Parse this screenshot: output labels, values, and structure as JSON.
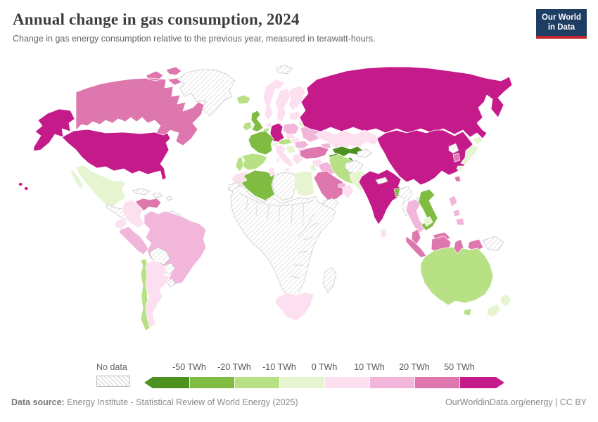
{
  "header": {
    "title": "Annual change in gas consumption, 2024",
    "subtitle": "Change in gas energy consumption relative to the previous year, measured in terawatt-hours.",
    "logo": {
      "line1": "Our World",
      "line2": "in Data",
      "bg": "#1d3d63",
      "accent": "#c1272d"
    }
  },
  "legend": {
    "no_data_label": "No data",
    "tick_labels": [
      "-50 TWh",
      "-20 TWh",
      "-10 TWh",
      "0 TWh",
      "10 TWh",
      "20 TWh",
      "50 TWh"
    ],
    "colors": [
      "#4d9221",
      "#7fbc41",
      "#b8e186",
      "#e6f5d0",
      "#fde0ef",
      "#f1b6da",
      "#de77ae",
      "#c51b8a"
    ]
  },
  "footer": {
    "source_label": "Data source:",
    "source_text": "Energy Institute - Statistical Review of World Energy (2025)",
    "site": "OurWorldinData.org/energy",
    "separator": "|",
    "license": "CC BY"
  },
  "chart_data": {
    "type": "choropleth",
    "title": "Annual change in gas consumption, 2024",
    "unit": "TWh",
    "legend_bin_labels": [
      "< -50 TWh",
      "-50 to -20 TWh",
      "-20 to -10 TWh",
      "-10 to 0 TWh",
      "0 to 10 TWh",
      "10 to 20 TWh",
      "20 to 50 TWh",
      "> 50 TWh"
    ],
    "bin_colors": [
      "#4d9221",
      "#7fbc41",
      "#b8e186",
      "#e6f5d0",
      "#fde0ef",
      "#f1b6da",
      "#de77ae",
      "#c51b8a"
    ],
    "no_data_label": "No data",
    "countries": {
      "united-states": 7,
      "canada": 6,
      "greenland": "no-data",
      "mexico": 3,
      "central-america": "no-data",
      "caribbean": "no-data",
      "guyanas": "no-data",
      "venezuela": 6,
      "colombia": 4,
      "ecuador": 4,
      "peru": 5,
      "brazil": 5,
      "bolivia": "no-data",
      "paraguay": "no-data",
      "uruguay": "no-data",
      "chile": 2,
      "argentina": 4,
      "iceland": 2,
      "united-kingdom": 1,
      "ireland": 2,
      "norway": 4,
      "sweden": 4,
      "finland": 4,
      "denmark": 4,
      "baltics": 4,
      "belarus": 3,
      "poland": 5,
      "germany": 7,
      "netherlands": 4,
      "belgium": 2,
      "france": 1,
      "switzerland": 3,
      "austria": 2,
      "czechia": 4,
      "hungary": 4,
      "romania": 5,
      "balkans": 3,
      "bulgaria": 4,
      "greece": 4,
      "italy": 4,
      "spain": 2,
      "portugal": 2,
      "ukraine": 5,
      "caucasus": 5,
      "russia": 7,
      "svalbard": "no-data",
      "kazakhstan": 4,
      "uzbekistan": 0,
      "turkmenistan": 0,
      "kyrgyzstan": "no-data",
      "mongolia": "no-data",
      "china": 7,
      "india": 7,
      "nepal": "no-data",
      "pakistan": 3,
      "afghanistan": "no-data",
      "bangladesh": 1,
      "sri-lanka": 4,
      "turkey": 6,
      "syria": 4,
      "israel-jordan": 3,
      "iraq": 5,
      "iran": 2,
      "saudi-arabia": 6,
      "yemen": "no-data",
      "oman": 4,
      "uae": 5,
      "egypt": 3,
      "libya": "no-data",
      "tunisia": 4,
      "algeria": 1,
      "morocco": 4,
      "western-sahara": "no-data",
      "sub-saharan-africa": "no-data",
      "south-africa": 4,
      "madagascar": "no-data",
      "japan": 3,
      "south-korea": 6,
      "north-korea": "no-data",
      "taiwan": 6,
      "myanmar": "no-data",
      "thailand": 5,
      "laos": "no-data",
      "vietnam": 1,
      "cambodia": 3,
      "malaysia": 6,
      "indonesia": 6,
      "philippines": 5,
      "papua-new-guinea": "no-data",
      "australia": 2,
      "new-zealand": 3
    }
  }
}
